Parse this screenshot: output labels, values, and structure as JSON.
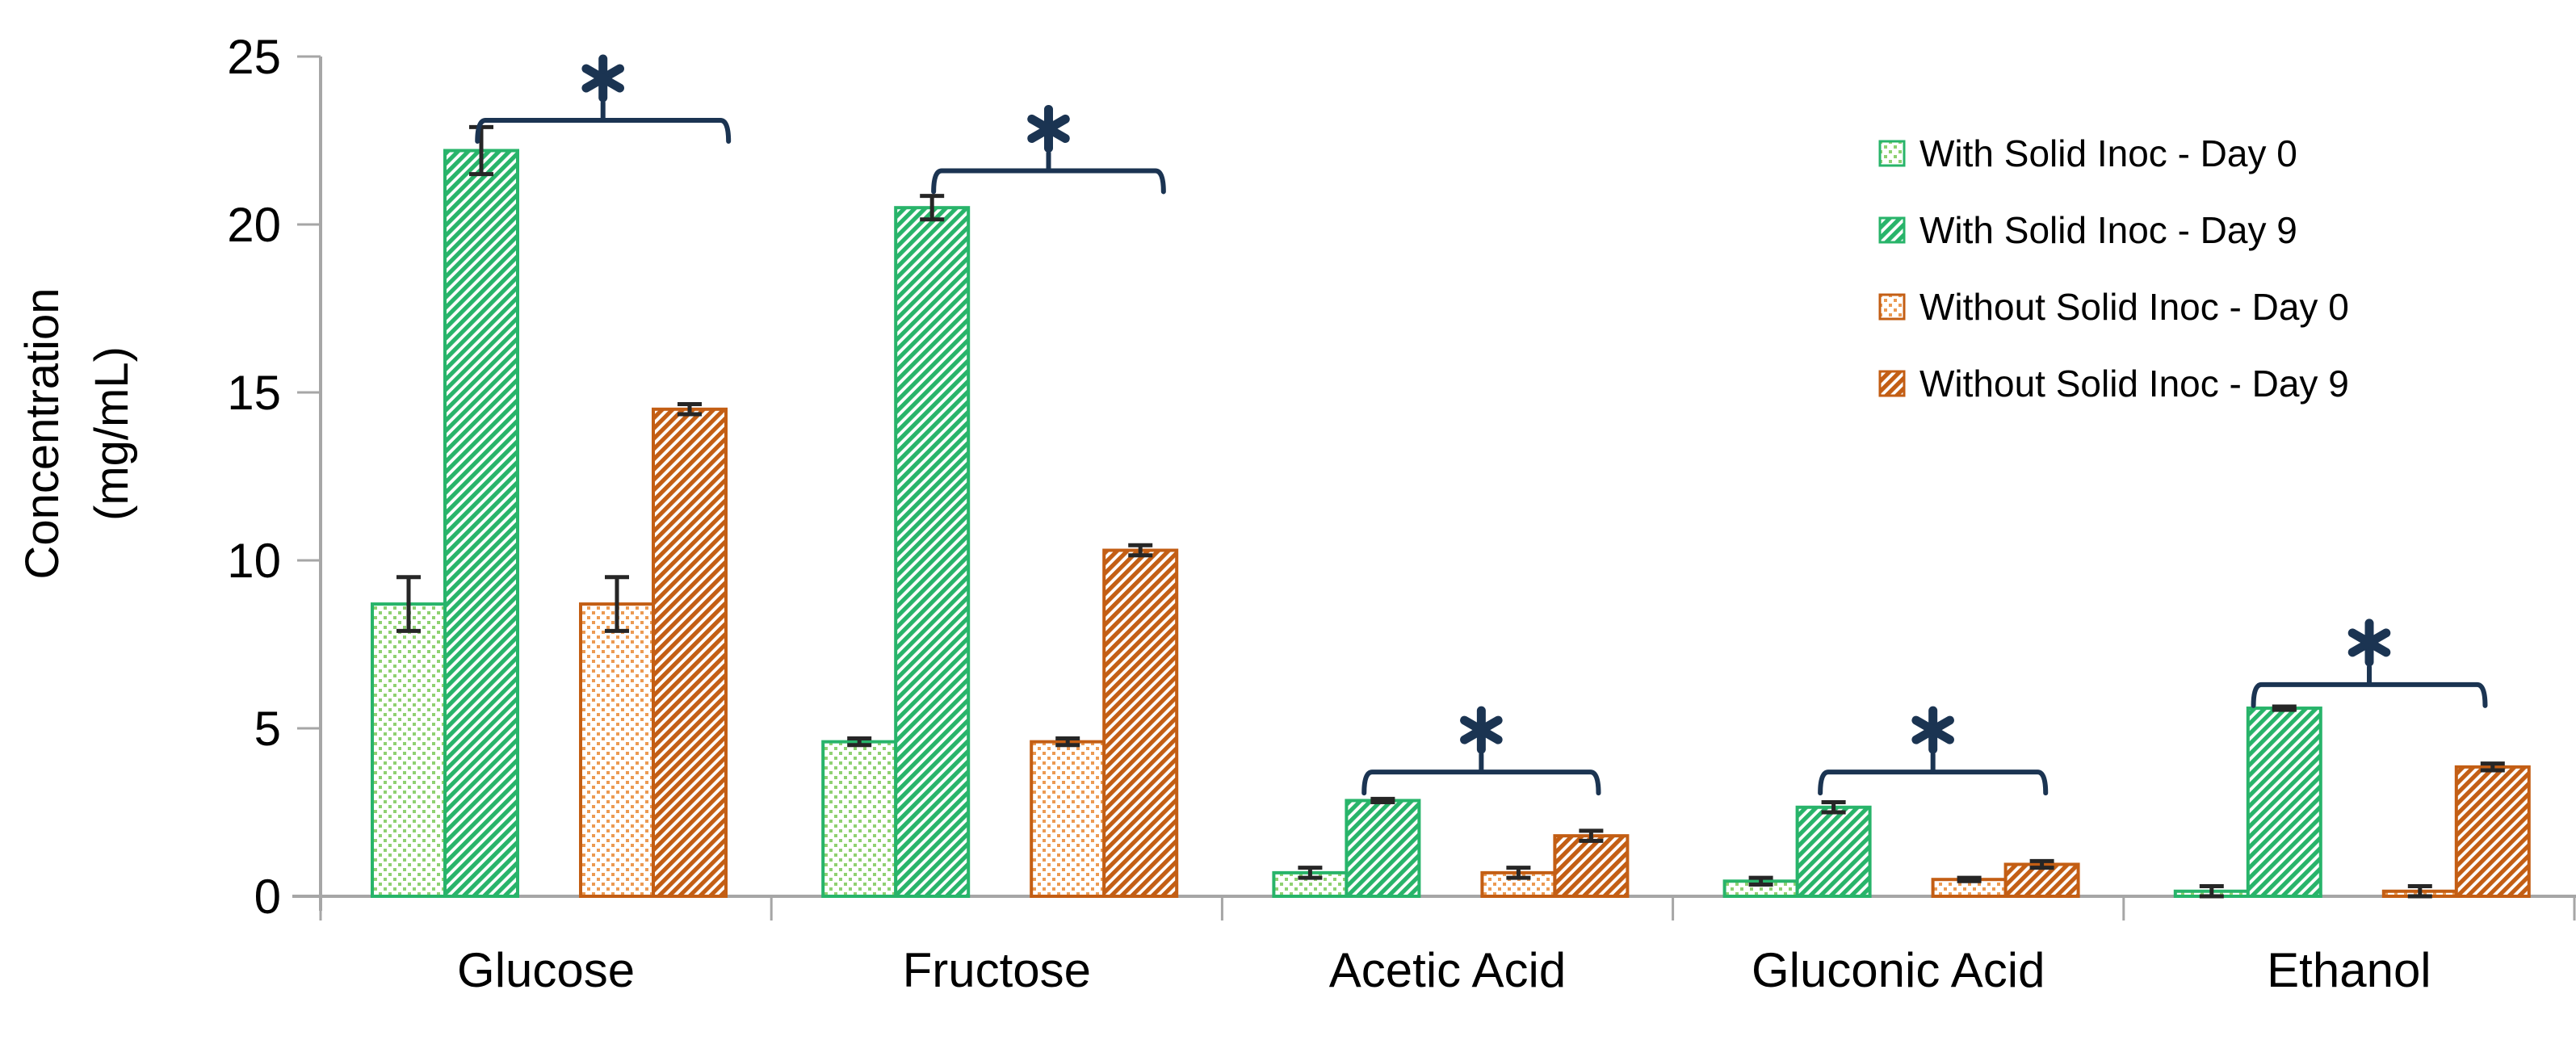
{
  "figure": {
    "y_axis": {
      "title_line1": "Concentration",
      "title_line2": "(mg/mL)",
      "ticks": [
        0,
        5,
        10,
        15,
        20,
        25
      ]
    },
    "colors": {
      "green": "#28B46A",
      "green_dot": "#8FD171",
      "orange": "#C35E14",
      "orange_dot": "#EC9A52",
      "bracket_navy": "#1B3452",
      "error_bar": "#262626",
      "axis_gray": "#A6A6A6",
      "text": "#000000",
      "background": "#FFFFFF"
    }
  },
  "chart_data": {
    "type": "bar",
    "title": "",
    "ylabel": "Concentration (mg/mL)",
    "xlabel": "",
    "ylim": [
      0,
      25
    ],
    "yticks": [
      0,
      5,
      10,
      15,
      20,
      25
    ],
    "grid": false,
    "legend_position": "top-right",
    "categories": [
      "Glucose",
      "Fructose",
      "Acetic Acid",
      "Gluconic Acid",
      "Ethanol"
    ],
    "series": [
      {
        "name": "With Solid Inoc - Day 0",
        "pattern": "green-dots",
        "values": [
          8.7,
          4.6,
          0.7,
          0.45,
          0.15
        ],
        "errors": [
          0.8,
          0.1,
          0.15,
          0.1,
          0.15
        ]
      },
      {
        "name": "With Solid Inoc - Day 9",
        "pattern": "green-stripes",
        "values": [
          22.2,
          20.5,
          2.85,
          2.65,
          5.6
        ],
        "errors": [
          0.7,
          0.35,
          0.05,
          0.15,
          0.05
        ]
      },
      {
        "name": "Without Solid Inoc - Day 0",
        "pattern": "orange-dots",
        "values": [
          8.7,
          4.6,
          0.7,
          0.5,
          0.15
        ],
        "errors": [
          0.8,
          0.1,
          0.15,
          0.05,
          0.15
        ]
      },
      {
        "name": "Without Solid Inoc - Day 9",
        "pattern": "orange-stripes",
        "values": [
          14.5,
          10.3,
          1.8,
          0.95,
          3.85
        ],
        "errors": [
          0.15,
          0.15,
          0.15,
          0.1,
          0.1
        ]
      }
    ],
    "significance_brackets": [
      {
        "category": "Glucose",
        "label": "*",
        "between": [
          "With Solid Inoc - Day 9",
          "Without Solid Inoc - Day 9"
        ],
        "height": 23.1
      },
      {
        "category": "Fructose",
        "label": "*",
        "between": [
          "With Solid Inoc - Day 9",
          "Without Solid Inoc - Day 9"
        ],
        "height": 21.6
      },
      {
        "category": "Acetic Acid",
        "label": "*",
        "between": [
          "With Solid Inoc - Day 9",
          "Without Solid Inoc - Day 9"
        ],
        "height": 3.7
      },
      {
        "category": "Gluconic Acid",
        "label": "*",
        "between": [
          "With Solid Inoc - Day 9",
          "Without Solid Inoc - Day 9"
        ],
        "height": 3.7
      },
      {
        "category": "Ethanol",
        "label": "*",
        "between": [
          "With Solid Inoc - Day 9",
          "Without Solid Inoc - Day 9"
        ],
        "height": 6.3
      }
    ]
  }
}
